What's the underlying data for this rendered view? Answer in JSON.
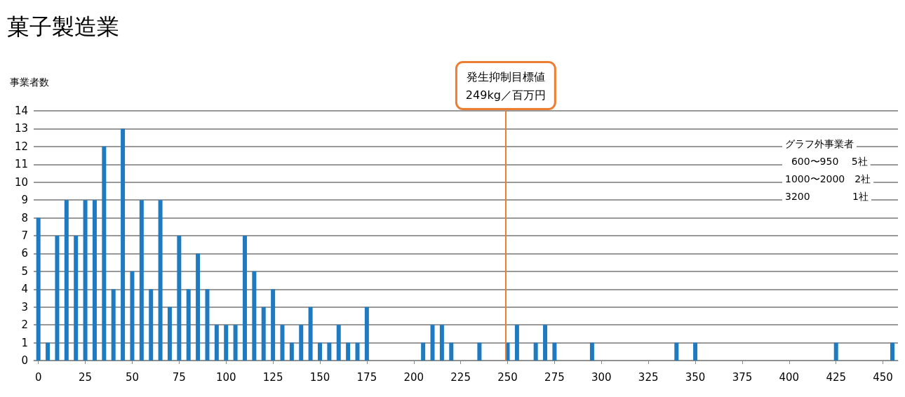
{
  "chart_data": {
    "type": "bar",
    "title": "菓子製造業",
    "ylabel": "事業者数",
    "x": [
      0,
      5,
      10,
      15,
      20,
      25,
      30,
      35,
      40,
      45,
      50,
      55,
      60,
      65,
      70,
      75,
      80,
      85,
      90,
      95,
      100,
      105,
      110,
      115,
      120,
      125,
      130,
      135,
      140,
      145,
      150,
      155,
      160,
      165,
      170,
      175,
      180,
      185,
      190,
      195,
      200,
      205,
      210,
      215,
      220,
      225,
      230,
      235,
      240,
      245,
      250,
      255,
      260,
      265,
      270,
      275,
      280,
      285,
      290,
      295,
      300,
      305,
      310,
      315,
      320,
      325,
      330,
      335,
      340,
      345,
      350,
      355,
      360,
      365,
      370,
      375,
      380,
      385,
      390,
      395,
      400,
      405,
      410,
      415,
      420,
      425,
      430,
      435,
      440,
      445,
      450,
      455
    ],
    "series": [
      {
        "color": "#1f7bc1",
        "values": [
          8,
          1,
          7,
          9,
          7,
          9,
          9,
          12,
          4,
          13,
          5,
          9,
          4,
          9,
          3,
          7,
          4,
          6,
          4,
          2,
          2,
          2,
          7,
          5,
          3,
          4,
          2,
          1,
          2,
          3,
          1,
          1,
          2,
          1,
          1,
          3,
          0,
          0,
          0,
          0,
          0,
          1,
          2,
          2,
          1,
          0,
          0,
          1,
          0,
          0,
          1,
          2,
          0,
          1,
          2,
          1,
          0,
          0,
          0,
          1,
          0,
          0,
          0,
          0,
          0,
          0,
          0,
          0,
          1,
          0,
          1,
          0,
          0,
          0,
          0,
          0,
          0,
          0,
          0,
          0,
          0,
          0,
          0,
          0,
          0,
          1,
          0,
          0,
          0,
          0,
          0,
          1
        ]
      }
    ],
    "xlim": [
      -2.5,
      458
    ],
    "xticks": [
      0,
      25,
      50,
      75,
      100,
      125,
      150,
      175,
      200,
      225,
      250,
      275,
      300,
      325,
      350,
      375,
      400,
      425,
      450
    ],
    "ylim": [
      0,
      14
    ],
    "yticks": [
      0,
      1,
      2,
      3,
      4,
      5,
      6,
      7,
      8,
      9,
      10,
      11,
      12,
      13,
      14
    ],
    "grid": "y",
    "ref_lines": [
      {
        "axis": "x",
        "value": 249,
        "label": "発生抑制目標値\n249kg／百万円",
        "color": "#ed7d31"
      }
    ],
    "annotations": [
      "グラフ外事業者",
      "  600〜950　 5社",
      "1000〜2000　2社",
      "3200　　　　 1社"
    ]
  }
}
